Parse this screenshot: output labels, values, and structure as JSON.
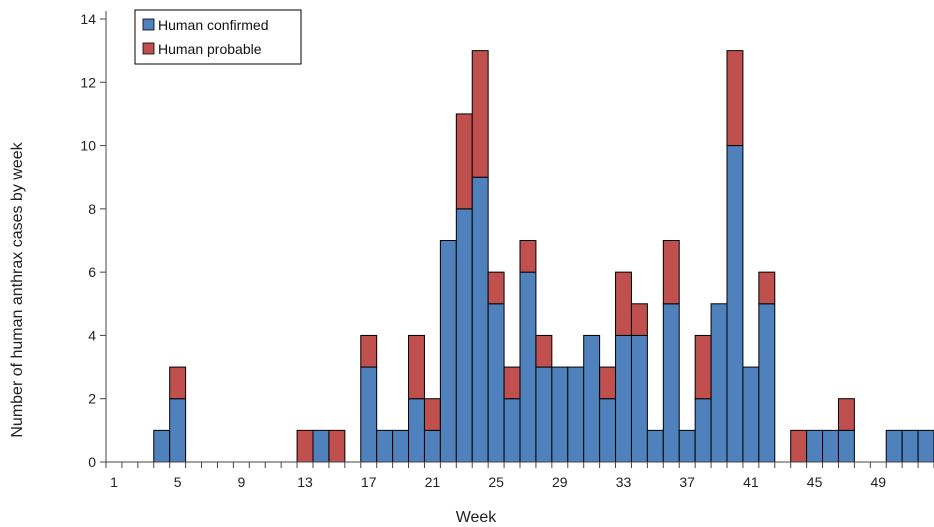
{
  "chart_data": {
    "type": "bar",
    "stacked": true,
    "xlabel": "Week",
    "ylabel": "Number of human anthrax cases by week",
    "ylim": [
      0,
      14
    ],
    "y_ticks": [
      0,
      2,
      4,
      6,
      8,
      10,
      12,
      14
    ],
    "x_range": [
      1,
      52
    ],
    "x_tick_labels": [
      1,
      5,
      9,
      13,
      17,
      21,
      25,
      29,
      33,
      37,
      41,
      45,
      49
    ],
    "grid": false,
    "legend_position": "top-left",
    "weeks": [
      1,
      2,
      3,
      4,
      5,
      6,
      7,
      8,
      9,
      10,
      11,
      12,
      13,
      14,
      15,
      16,
      17,
      18,
      19,
      20,
      21,
      22,
      23,
      24,
      25,
      26,
      27,
      28,
      29,
      30,
      31,
      32,
      33,
      34,
      35,
      36,
      37,
      38,
      39,
      40,
      41,
      42,
      43,
      44,
      45,
      46,
      47,
      48,
      49,
      50,
      51,
      52
    ],
    "series": [
      {
        "name": "Human confirmed",
        "color": "#4f81bd",
        "values": [
          0,
          0,
          0,
          1,
          2,
          0,
          0,
          0,
          0,
          0,
          0,
          0,
          0,
          1,
          0,
          0,
          3,
          1,
          1,
          2,
          1,
          7,
          8,
          9,
          5,
          2,
          6,
          3,
          3,
          3,
          4,
          2,
          4,
          4,
          1,
          5,
          1,
          2,
          5,
          10,
          3,
          5,
          0,
          0,
          1,
          1,
          1,
          0,
          0,
          1,
          1,
          1
        ]
      },
      {
        "name": "Human probable",
        "color": "#c0504d",
        "values": [
          0,
          0,
          0,
          0,
          1,
          0,
          0,
          0,
          0,
          0,
          0,
          0,
          1,
          0,
          1,
          0,
          1,
          0,
          0,
          2,
          1,
          0,
          3,
          4,
          1,
          1,
          1,
          1,
          0,
          0,
          0,
          1,
          2,
          1,
          0,
          2,
          0,
          2,
          0,
          3,
          0,
          1,
          0,
          1,
          0,
          0,
          1,
          0,
          0,
          0,
          0,
          0
        ]
      }
    ]
  }
}
